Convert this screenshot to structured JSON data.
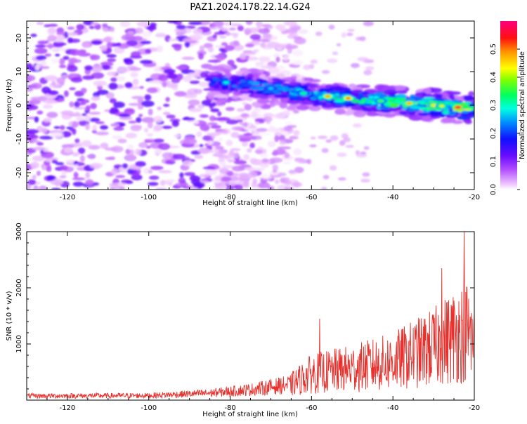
{
  "title": "PAZ1.2024.178.22.14.G24",
  "chart_data": [
    {
      "type": "heatmap",
      "xlabel": "Height of straight line (km)",
      "ylabel": "Frequency (Hz)",
      "xlim": [
        -130,
        -20
      ],
      "ylim": [
        -25,
        25
      ],
      "xticks": [
        -120,
        -100,
        -80,
        -60,
        -40,
        -20
      ],
      "yticks": [
        -20,
        -10,
        0,
        10,
        20
      ],
      "colorbar": {
        "label": "Normalized spectral amplitude",
        "range": [
          0.0,
          0.6
        ],
        "ticks": [
          0.0,
          0.1,
          0.2,
          0.3,
          0.4,
          0.5
        ],
        "colormap": "hsv (magenta-purple-blue-cyan-green-yellow-red)"
      },
      "ridge": {
        "description": "high-amplitude band following Doppler frequency",
        "points": [
          {
            "x": -83,
            "y": 7
          },
          {
            "x": -75,
            "y": 6
          },
          {
            "x": -65,
            "y": 4
          },
          {
            "x": -55,
            "y": 2.5
          },
          {
            "x": -45,
            "y": 1.5
          },
          {
            "x": -35,
            "y": 0.5
          },
          {
            "x": -25,
            "y": -0.5
          },
          {
            "x": -20,
            "y": -1
          }
        ],
        "peak": {
          "x": -24,
          "y": 0,
          "value": 0.58
        }
      },
      "noise_region": {
        "x_range": [
          -130,
          -65
        ],
        "y_range": [
          -25,
          25
        ],
        "typical_value": 0.08
      }
    },
    {
      "type": "line",
      "xlabel": "Height of straight line (km)",
      "ylabel": "SNR (10 * v/v)",
      "xlim": [
        -130,
        -20
      ],
      "ylim": [
        0,
        3000
      ],
      "xticks": [
        -120,
        -100,
        -80,
        -60,
        -40,
        -20
      ],
      "yticks": [
        1000,
        2000,
        3000
      ],
      "color": "#e8302c",
      "envelope": [
        {
          "x": -130,
          "y": 120
        },
        {
          "x": -100,
          "y": 130
        },
        {
          "x": -85,
          "y": 200
        },
        {
          "x": -75,
          "y": 300
        },
        {
          "x": -65,
          "y": 450
        },
        {
          "x": -60,
          "y": 750
        },
        {
          "x": -50,
          "y": 900
        },
        {
          "x": -40,
          "y": 1100
        },
        {
          "x": -30,
          "y": 1500
        },
        {
          "x": -22,
          "y": 2000
        },
        {
          "x": -20,
          "y": 1600
        }
      ],
      "peaks": [
        {
          "x": -58,
          "y": 1450
        },
        {
          "x": -28,
          "y": 2350
        },
        {
          "x": -22.5,
          "y": 3000
        }
      ]
    }
  ]
}
